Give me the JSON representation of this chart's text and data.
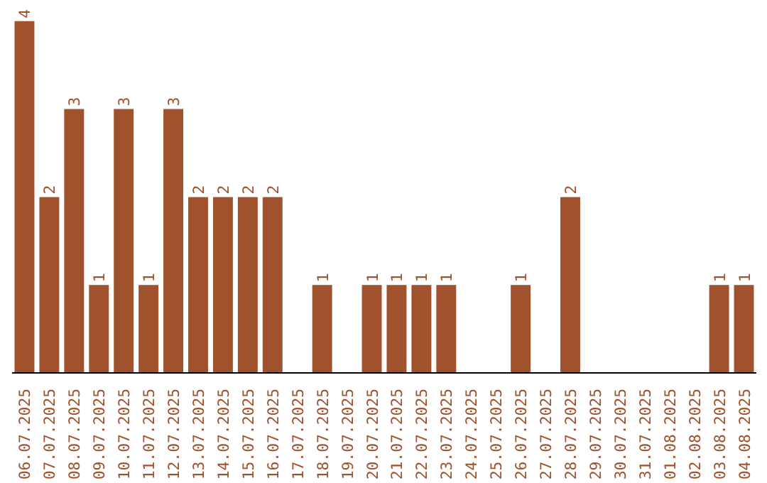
{
  "chart_data": {
    "type": "bar",
    "color": "#a0522d",
    "grid": false,
    "categories": [
      "06.07.2025",
      "07.07.2025",
      "08.07.2025",
      "09.07.2025",
      "10.07.2025",
      "11.07.2025",
      "12.07.2025",
      "13.07.2025",
      "14.07.2025",
      "15.07.2025",
      "16.07.2025",
      "17.07.2025",
      "18.07.2025",
      "19.07.2025",
      "20.07.2025",
      "21.07.2025",
      "22.07.2025",
      "23.07.2025",
      "24.07.2025",
      "25.07.2025",
      "26.07.2025",
      "27.07.2025",
      "28.07.2025",
      "29.07.2025",
      "30.07.2025",
      "31.07.2025",
      "01.08.2025",
      "02.08.2025",
      "03.08.2025",
      "04.08.2025"
    ],
    "values": [
      4,
      2,
      3,
      1,
      3,
      1,
      3,
      2,
      2,
      2,
      2,
      0,
      1,
      0,
      1,
      1,
      1,
      1,
      0,
      0,
      1,
      0,
      2,
      0,
      0,
      0,
      0,
      0,
      1,
      1
    ],
    "value_labels": [
      "4",
      "2",
      "3",
      "1",
      "3",
      "1",
      "3",
      "2",
      "2",
      "2",
      "2",
      null,
      "1",
      null,
      "1",
      "1",
      "1",
      "1",
      null,
      null,
      "1",
      null,
      "2",
      null,
      null,
      null,
      null,
      null,
      "1",
      "1"
    ],
    "tick_labels": "x"
  }
}
